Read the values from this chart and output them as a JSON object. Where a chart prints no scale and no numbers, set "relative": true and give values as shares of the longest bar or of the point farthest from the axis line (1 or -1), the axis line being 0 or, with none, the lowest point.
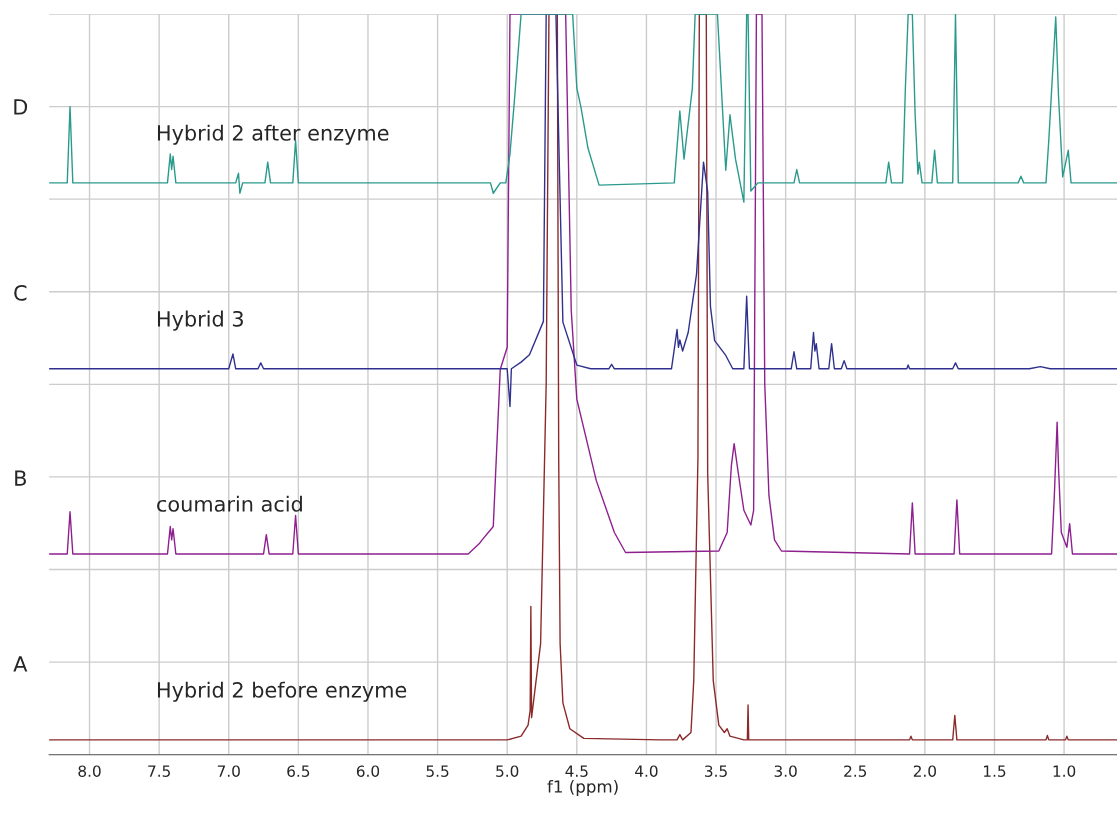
{
  "chart_data": {
    "type": "line",
    "relative": true,
    "xlabel": "f1 (ppm)",
    "xlim": [
      8.29,
      0.62
    ],
    "xticks": [
      {
        "value": 8,
        "label": "8.0"
      },
      {
        "value": 7.5,
        "label": "7.5"
      },
      {
        "value": 7,
        "label": "7.0"
      },
      {
        "value": 6.5,
        "label": "6.5"
      },
      {
        "value": 6,
        "label": "6.0"
      },
      {
        "value": 5.5,
        "label": "5.5"
      },
      {
        "value": 5,
        "label": "5.0"
      },
      {
        "value": 4.5,
        "label": "4.5"
      },
      {
        "value": 4,
        "label": "4.0"
      },
      {
        "value": 3.5,
        "label": "3.5"
      },
      {
        "value": 3,
        "label": "3.0"
      },
      {
        "value": 2.5,
        "label": "2.5"
      },
      {
        "value": 2,
        "label": "2.0"
      },
      {
        "value": 1.5,
        "label": "1.5"
      },
      {
        "value": 1,
        "label": "1.0"
      }
    ],
    "grid": true,
    "legend": false,
    "marker": "none",
    "line_style": "solid",
    "annotations": [
      "A",
      "B",
      "C",
      "D"
    ],
    "series": [
      {
        "name": "Hybrid 2 before enzyme",
        "color": "#8b2a2a",
        "x": [
          8.29,
          5.0,
          4.9,
          4.85,
          4.835,
          4.83,
          4.825,
          4.76,
          4.72,
          4.7,
          4.64,
          4.63,
          4.62,
          4.6,
          4.55,
          4.45,
          3.9,
          3.78,
          3.76,
          3.74,
          3.68,
          3.66,
          3.63,
          3.62,
          3.57,
          3.56,
          3.52,
          3.48,
          3.44,
          3.42,
          3.4,
          3.3,
          3.275,
          3.27,
          3.265,
          2.11,
          2.1,
          2.09,
          1.8,
          1.785,
          1.77,
          1.13,
          1.12,
          1.11,
          0.99,
          0.98,
          0.97,
          0.62
        ],
        "values": [
          0.02,
          0.02,
          0.025,
          0.04,
          0.06,
          0.2,
          0.05,
          0.15,
          0.5,
          1,
          1,
          0.4,
          0.15,
          0.07,
          0.035,
          0.022,
          0.02,
          0.02,
          0.027,
          0.02,
          0.03,
          0.1,
          0.4,
          1,
          1,
          0.38,
          0.1,
          0.04,
          0.03,
          0.035,
          0.025,
          0.02,
          0.02,
          0.067,
          0.02,
          0.02,
          0.025,
          0.02,
          0.02,
          0.053,
          0.02,
          0.02,
          0.026,
          0.02,
          0.02,
          0.025,
          0.02,
          0.02
        ]
      },
      {
        "name": "coumarin acid",
        "color": "#8e1f8e",
        "x": [
          8.29,
          8.16,
          8.14,
          8.12,
          7.44,
          7.42,
          7.41,
          7.4,
          7.38,
          6.75,
          6.73,
          6.71,
          6.54,
          6.52,
          6.5,
          5.28,
          5.2,
          5.18,
          5.1,
          5.05,
          5.0,
          4.98,
          4.58,
          4.54,
          4.5,
          4.36,
          4.23,
          4.15,
          3.48,
          3.42,
          3.39,
          3.37,
          3.355,
          3.34,
          3.3,
          3.25,
          3.23,
          3.21,
          3.17,
          3.15,
          3.12,
          3.08,
          3.03,
          2.11,
          2.09,
          2.07,
          1.79,
          1.77,
          1.75,
          1.09,
          1.07,
          1.05,
          1.04,
          1.02,
          0.98,
          0.96,
          0.94,
          0.62
        ],
        "values": [
          0.271,
          0.271,
          0.328,
          0.271,
          0.271,
          0.308,
          0.29,
          0.305,
          0.271,
          0.271,
          0.297,
          0.271,
          0.271,
          0.323,
          0.271,
          0.271,
          0.285,
          0.29,
          0.308,
          0.52,
          0.55,
          1,
          1,
          0.6,
          0.48,
          0.37,
          0.3,
          0.273,
          0.275,
          0.3,
          0.39,
          0.42,
          0.4,
          0.38,
          0.33,
          0.31,
          0.33,
          1,
          1,
          0.5,
          0.35,
          0.29,
          0.275,
          0.271,
          0.34,
          0.271,
          0.271,
          0.344,
          0.271,
          0.271,
          0.35,
          0.449,
          0.387,
          0.3,
          0.28,
          0.312,
          0.271,
          0.271
        ]
      },
      {
        "name": "Hybrid 3",
        "color": "#30308f",
        "x": [
          8.29,
          7.0,
          6.97,
          6.95,
          6.79,
          6.77,
          6.75,
          5.0,
          4.98,
          4.97,
          4.9,
          4.84,
          4.74,
          4.72,
          4.7,
          4.65,
          4.6,
          4.5,
          4.4,
          4.27,
          4.25,
          4.23,
          3.82,
          3.78,
          3.77,
          3.76,
          3.74,
          3.7,
          3.67,
          3.64,
          3.59,
          3.56,
          3.54,
          3.51,
          3.43,
          3.38,
          3.3,
          3.28,
          3.26,
          2.96,
          2.94,
          2.92,
          2.82,
          2.8,
          2.79,
          2.78,
          2.76,
          2.69,
          2.67,
          2.65,
          2.6,
          2.58,
          2.56,
          2.13,
          2.12,
          2.11,
          1.8,
          1.78,
          1.76,
          1.25,
          1.17,
          1.1,
          0.62
        ],
        "values": [
          0.521,
          0.521,
          0.541,
          0.521,
          0.521,
          0.529,
          0.521,
          0.521,
          0.47,
          0.521,
          0.53,
          0.54,
          0.585,
          1,
          1,
          1,
          0.584,
          0.526,
          0.521,
          0.521,
          0.527,
          0.521,
          0.521,
          0.574,
          0.55,
          0.56,
          0.545,
          0.57,
          0.609,
          0.649,
          0.8,
          0.76,
          0.605,
          0.559,
          0.539,
          0.521,
          0.521,
          0.619,
          0.521,
          0.521,
          0.544,
          0.521,
          0.521,
          0.57,
          0.545,
          0.555,
          0.521,
          0.521,
          0.555,
          0.521,
          0.521,
          0.532,
          0.521,
          0.521,
          0.526,
          0.521,
          0.521,
          0.529,
          0.521,
          0.521,
          0.524,
          0.521,
          0.521
        ]
      },
      {
        "name": "Hybrid 2 after enzyme",
        "color": "#2a9a8c",
        "x": [
          8.29,
          8.16,
          8.14,
          8.12,
          7.44,
          7.42,
          7.41,
          7.4,
          7.38,
          6.95,
          6.93,
          6.92,
          6.9,
          6.74,
          6.72,
          6.7,
          6.54,
          6.52,
          6.5,
          5.12,
          5.1,
          5.05,
          5.01,
          4.98,
          4.95,
          4.9,
          4.53,
          4.5,
          4.47,
          4.42,
          4.34,
          3.8,
          3.76,
          3.73,
          3.67,
          3.65,
          3.49,
          3.43,
          3.4,
          3.36,
          3.3,
          3.28,
          3.27,
          3.25,
          3.2,
          2.94,
          2.92,
          2.9,
          2.28,
          2.26,
          2.24,
          2.16,
          2.14,
          2.12,
          2.09,
          2.07,
          2.05,
          2.04,
          2.02,
          1.95,
          1.93,
          1.91,
          1.8,
          1.78,
          1.76,
          1.33,
          1.31,
          1.29,
          1.13,
          1.11,
          1.06,
          1.04,
          1.01,
          0.97,
          0.95,
          0.62
        ],
        "values": [
          0.772,
          0.772,
          0.875,
          0.772,
          0.772,
          0.811,
          0.79,
          0.808,
          0.772,
          0.772,
          0.785,
          0.758,
          0.772,
          0.772,
          0.8,
          0.772,
          0.772,
          0.829,
          0.772,
          0.772,
          0.758,
          0.772,
          0.772,
          0.811,
          0.879,
          1,
          1,
          0.9,
          0.874,
          0.819,
          0.769,
          0.772,
          0.869,
          0.804,
          0.9,
          1,
          1,
          0.789,
          0.864,
          0.804,
          0.746,
          1,
          1,
          0.761,
          0.772,
          0.772,
          0.79,
          0.772,
          0.772,
          0.8,
          0.772,
          0.772,
          0.9,
          1,
          1,
          0.864,
          0.784,
          0.8,
          0.772,
          0.772,
          0.816,
          0.772,
          0.772,
          1,
          0.772,
          0.772,
          0.781,
          0.772,
          0.772,
          0.829,
          0.996,
          0.889,
          0.78,
          0.816,
          0.772,
          0.772
        ]
      }
    ]
  }
}
